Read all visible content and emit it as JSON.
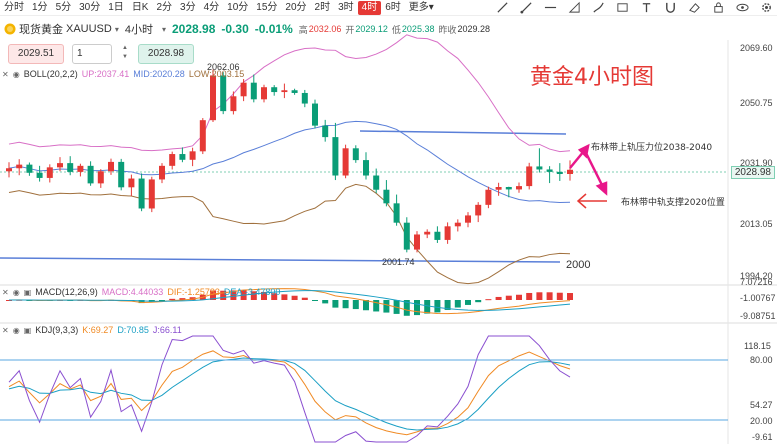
{
  "toolbar": {
    "timeframes": [
      "分时",
      "1分",
      "5分",
      "30分",
      "1日",
      "日K",
      "2分",
      "3分",
      "4分",
      "10分",
      "15分",
      "20分",
      "2时",
      "3时",
      "4时",
      "6时"
    ],
    "active": "4时",
    "more": "更多"
  },
  "toolbar_icons": [
    "trendline-icon",
    "ray-icon",
    "horizontal-line-icon",
    "measure-icon",
    "brush-icon",
    "shapes-icon",
    "text-icon",
    "magnet-icon",
    "eraser-icon",
    "lock-icon",
    "eye-icon",
    "gear-icon"
  ],
  "symbol": {
    "name": "现货黄金",
    "code": "XAUUSD",
    "interval": "4小时"
  },
  "quote": {
    "price": "2028.98",
    "change": "-0.30",
    "change_pct": "-0.01%",
    "high_label": "高",
    "high": "2032.06",
    "open_label": "开",
    "open": "2029.12",
    "low_label": "低",
    "low": "2025.38",
    "prev_label": "昨收",
    "prev": "2029.28"
  },
  "trade": {
    "sell": "2029.51",
    "qty": "1",
    "buy": "2028.98"
  },
  "boll": {
    "name": "BOLL(20,2,2)",
    "up_label": "UP:",
    "up": "2037.41",
    "mid_label": "MID:",
    "mid": "2020.28",
    "low_label": "LOW:",
    "low": "2003.15"
  },
  "macd": {
    "name": "MACD(12,26,9)",
    "macd_label": "MACD:",
    "macd": "4.44033",
    "dif_label": "DIF:",
    "dif": "-1.25783",
    "dea_label": "DEA:",
    "dea": "-3.47800"
  },
  "kdj": {
    "name": "KDJ(9,3,3)",
    "k_label": "K:",
    "k": "69.27",
    "d_label": "D:",
    "d": "70.85",
    "j_label": "J:",
    "j": "66.11"
  },
  "price_axis": [
    "2069.60",
    "2050.75",
    "2031.90",
    "2013.05",
    "1994.20"
  ],
  "current_price_tag": "2028.98",
  "macd_axis": [
    "7.07216",
    "-1.00767",
    "-9.08751"
  ],
  "kdj_axis": [
    "118.15",
    "80.00",
    "54.27",
    "20.00",
    "-9.61"
  ],
  "annotations": {
    "title": "黄金4小时图",
    "high_mark": "2062.06",
    "low_mark": "2001.74",
    "level_2000": "2000",
    "resistance_note": "布林带上轨压力位2038-2040",
    "support_note": "布林带中轨支撑2020位置"
  },
  "colors": {
    "up": "#e53935",
    "down": "#0a9d77",
    "boll_up": "#d86fc6",
    "boll_mid": "#5a7fd8",
    "boll_low": "#a0703d",
    "annot": "#e8178a"
  },
  "candles": [
    [
      2028.5,
      2031.5,
      2026.5,
      2029.5
    ],
    [
      2029.5,
      2032.5,
      2027.2,
      2030.7
    ],
    [
      2030.7,
      2031.4,
      2027,
      2028
    ],
    [
      2028,
      2030.3,
      2025.1,
      2026.3
    ],
    [
      2026.3,
      2030.8,
      2024.8,
      2029.8
    ],
    [
      2029.8,
      2033.2,
      2028.5,
      2031.2
    ],
    [
      2031.2,
      2033.5,
      2027.2,
      2028.3
    ],
    [
      2028.3,
      2031,
      2026.8,
      2030.3
    ],
    [
      2030.3,
      2031.8,
      2023.7,
      2024.5
    ],
    [
      2024.5,
      2029.2,
      2023,
      2028.5
    ],
    [
      2028.5,
      2032.7,
      2027.3,
      2031.6
    ],
    [
      2031.6,
      2032.6,
      2022.2,
      2023.2
    ],
    [
      2023.2,
      2027.4,
      2020.3,
      2026.1
    ],
    [
      2026.1,
      2027.8,
      2015.3,
      2016.2
    ],
    [
      2016.2,
      2026.7,
      2015,
      2025.8
    ],
    [
      2025.8,
      2031.2,
      2024.6,
      2030.3
    ],
    [
      2030.3,
      2035,
      2029.1,
      2034.2
    ],
    [
      2034.2,
      2036.4,
      2031.5,
      2032.3
    ],
    [
      2032.3,
      2036.3,
      2030.2,
      2035.1
    ],
    [
      2035.1,
      2046.1,
      2034.2,
      2045.4
    ],
    [
      2045.4,
      2062.1,
      2044.8,
      2060.2
    ],
    [
      2060.2,
      2061.3,
      2047.4,
      2048.4
    ],
    [
      2048.4,
      2054.9,
      2047.3,
      2053.3
    ],
    [
      2053.3,
      2059,
      2051.7,
      2057.8
    ],
    [
      2057.8,
      2060.5,
      2051.3,
      2052.3
    ],
    [
      2052.3,
      2057.1,
      2051.3,
      2056.3
    ],
    [
      2056.3,
      2057,
      2053.5,
      2054.7
    ],
    [
      2054.7,
      2057.5,
      2052.7,
      2055.3
    ],
    [
      2055.3,
      2055.8,
      2053.8,
      2054.4
    ],
    [
      2054.4,
      2055.4,
      2049.7,
      2050.9
    ],
    [
      2050.9,
      2052.2,
      2042.7,
      2043.6
    ],
    [
      2043.6,
      2045.5,
      2038.3,
      2039.8
    ],
    [
      2039.8,
      2044.5,
      2025.6,
      2027.1
    ],
    [
      2027.1,
      2037.3,
      2026.2,
      2036.1
    ],
    [
      2036.1,
      2037.1,
      2031.3,
      2032.2
    ],
    [
      2032.2,
      2034.8,
      2025.8,
      2027.1
    ],
    [
      2027.1,
      2029.4,
      2021.3,
      2022.4
    ],
    [
      2022.4,
      2025.6,
      2016.9,
      2017.9
    ],
    [
      2017.9,
      2020.8,
      2010.5,
      2011.5
    ],
    [
      2011.5,
      2013.3,
      2001.7,
      2002.6
    ],
    [
      2002.6,
      2008.7,
      2001.7,
      2007.6
    ],
    [
      2007.6,
      2009.3,
      2006.4,
      2008.5
    ],
    [
      2008.5,
      2010.3,
      2004.8,
      2005.8
    ],
    [
      2005.8,
      2011.6,
      2004.5,
      2010.3
    ],
    [
      2010.3,
      2012.6,
      2008.6,
      2011.5
    ],
    [
      2011.5,
      2015,
      2010,
      2013.9
    ],
    [
      2013.9,
      2018.3,
      2011.7,
      2017.4
    ],
    [
      2017.4,
      2023.4,
      2016.3,
      2022.4
    ],
    [
      2022.4,
      2024.7,
      2020.4,
      2023.3
    ],
    [
      2023.3,
      2023.4,
      2019.9,
      2022.5
    ],
    [
      2022.5,
      2024.8,
      2021.4,
      2023.6
    ],
    [
      2023.6,
      2031.3,
      2022.5,
      2030.1
    ],
    [
      2030.1,
      2036.1,
      2028.1,
      2029.1
    ],
    [
      2029.1,
      2030.2,
      2024.6,
      2028.3
    ],
    [
      2028.3,
      2031.2,
      2025.3,
      2027.6
    ],
    [
      2027.6,
      2032.1,
      2025.4,
      2029
    ]
  ]
}
